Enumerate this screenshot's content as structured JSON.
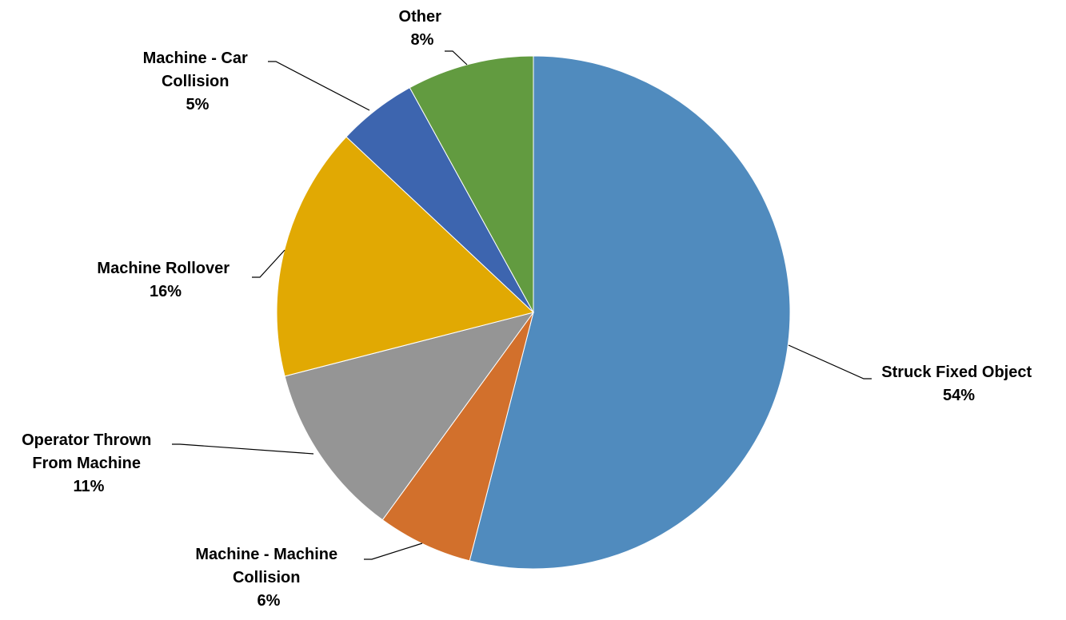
{
  "chart_data": {
    "type": "pie",
    "title": "",
    "legend": "none",
    "slices": [
      {
        "label_lines": [
          "Struck Fixed Object"
        ],
        "label": "Struck Fixed Object",
        "value": 54,
        "pct": "54%",
        "color": "#508BBE"
      },
      {
        "label_lines": [
          "Machine - Machine",
          "Collision"
        ],
        "label": "Machine - Machine Collision",
        "value": 6,
        "pct": "6%",
        "color": "#D2702C"
      },
      {
        "label_lines": [
          "Operator Thrown",
          "From Machine"
        ],
        "label": "Operator Thrown From Machine",
        "value": 11,
        "pct": "11%",
        "color": "#959595"
      },
      {
        "label_lines": [
          "Machine Rollover"
        ],
        "label": "Machine Rollover",
        "value": 16,
        "pct": "16%",
        "color": "#E1A903"
      },
      {
        "label_lines": [
          "Machine - Car",
          "Collision"
        ],
        "label": "Machine - Car Collision",
        "value": 5,
        "pct": "5%",
        "color": "#3D65AF"
      },
      {
        "label_lines": [
          "Other"
        ],
        "label": "Other",
        "value": 8,
        "pct": "8%",
        "color": "#629B40"
      }
    ]
  }
}
